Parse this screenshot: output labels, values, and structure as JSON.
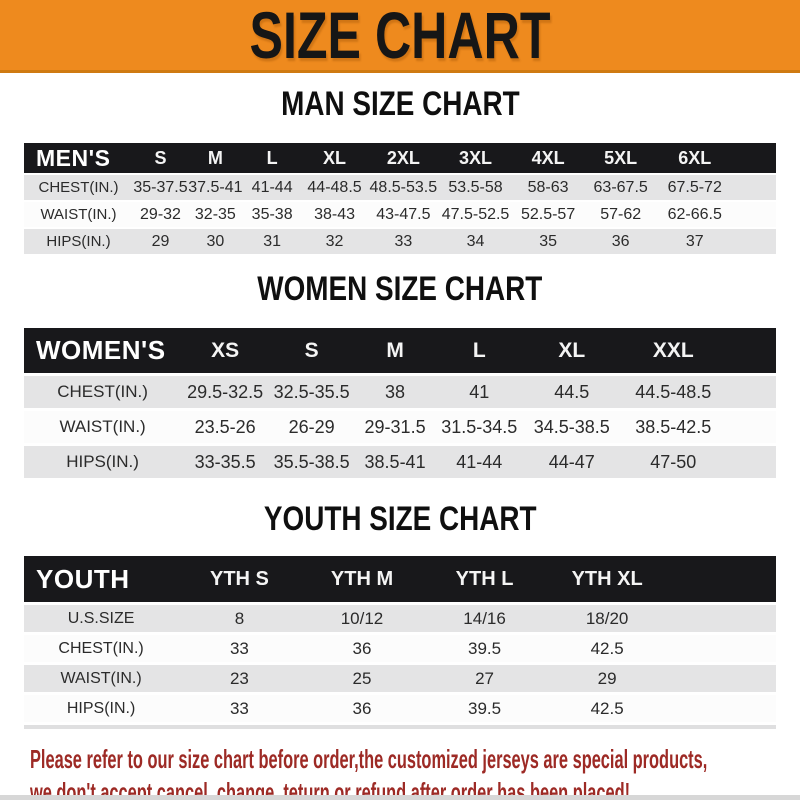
{
  "banner": {
    "title": "SIZE CHART",
    "bg_color": "#ee8a1e",
    "text_color": "#161616"
  },
  "colors": {
    "header_bar": "#18181b",
    "row_shade": "#e4e4e5",
    "row_plain": "#fcfcfc",
    "notice_red": "#9d2a25"
  },
  "sections": [
    {
      "id": "men",
      "heading": "MAN SIZE CHART",
      "table": {
        "corner_label": "MEN'S",
        "columns": [
          "S",
          "M",
          "L",
          "XL",
          "2XL",
          "3XL",
          "4XL",
          "5XL",
          "6XL"
        ],
        "rows": [
          {
            "label": "CHEST(IN.)",
            "values": [
              "35-37.5",
              "37.5-41",
              "41-44",
              "44-48.5",
              "48.5-53.5",
              "53.5-58",
              "58-63",
              "63-67.5",
              "67.5-72"
            ]
          },
          {
            "label": "WAIST(IN.)",
            "values": [
              "29-32",
              "32-35",
              "35-38",
              "38-43",
              "43-47.5",
              "47.5-52.5",
              "52.5-57",
              "57-62",
              "62-66.5"
            ]
          },
          {
            "label": "HIPS(IN.)",
            "values": [
              "29",
              "30",
              "31",
              "32",
              "33",
              "34",
              "35",
              "36",
              "37"
            ]
          }
        ]
      }
    },
    {
      "id": "women",
      "heading": "WOMEN SIZE CHART",
      "table": {
        "corner_label": "WOMEN'S",
        "columns": [
          "XS",
          "S",
          "M",
          "L",
          "XL",
          "XXL"
        ],
        "rows": [
          {
            "label": "CHEST(IN.)",
            "values": [
              "29.5-32.5",
              "32.5-35.5",
              "38",
              "41",
              "44.5",
              "44.5-48.5"
            ]
          },
          {
            "label": "WAIST(IN.)",
            "values": [
              "23.5-26",
              "26-29",
              "29-31.5",
              "31.5-34.5",
              "34.5-38.5",
              "38.5-42.5"
            ]
          },
          {
            "label": "HIPS(IN.)",
            "values": [
              "33-35.5",
              "35.5-38.5",
              "38.5-41",
              "41-44",
              "44-47",
              "47-50"
            ]
          }
        ]
      }
    },
    {
      "id": "youth",
      "heading": "YOUTH SIZE CHART",
      "table": {
        "corner_label": "YOUTH",
        "columns": [
          "YTH S",
          "YTH M",
          "YTH L",
          "YTH XL"
        ],
        "rows": [
          {
            "label": "U.S.SIZE",
            "values": [
              "8",
              "10/12",
              "14/16",
              "18/20"
            ]
          },
          {
            "label": "CHEST(IN.)",
            "values": [
              "33",
              "36",
              "39.5",
              "42.5"
            ]
          },
          {
            "label": "WAIST(IN.)",
            "values": [
              "23",
              "25",
              "27",
              "29"
            ]
          },
          {
            "label": "HIPS(IN.)",
            "values": [
              "33",
              "36",
              "39.5",
              "42.5"
            ]
          }
        ]
      }
    }
  ],
  "footer": {
    "line1": "Please refer to our size chart before order,the customized jerseys are special products,",
    "line2": "we don't accept cancel, change, teturn or refund after order has been placed!"
  }
}
